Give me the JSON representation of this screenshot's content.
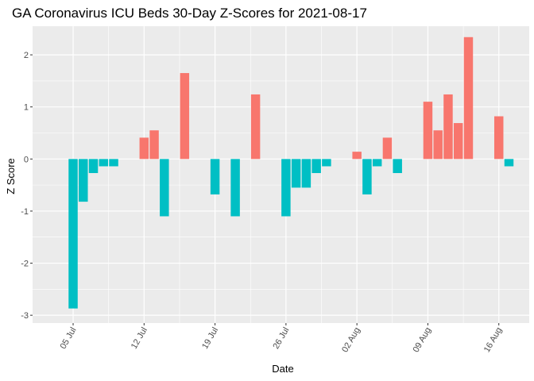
{
  "chart_data": {
    "type": "bar",
    "title": "GA Coronavirus ICU Beds 30-Day Z-Scores for 2021-08-17",
    "xlabel": "Date",
    "ylabel": "Z Score",
    "ylim": [
      -3.15,
      2.55
    ],
    "xlim": [
      "2021-07-01",
      "2021-08-19"
    ],
    "grid": true,
    "legend": "none",
    "colors": {
      "positive": "#F8766D",
      "negative": "#00BFC4",
      "panel": "#EBEBEB",
      "grid": "#FFFFFF"
    },
    "y_ticks": [
      -3,
      -2,
      -1,
      0,
      1,
      2
    ],
    "x_ticks": [
      {
        "date": "2021-07-05",
        "label": "05 Jul"
      },
      {
        "date": "2021-07-12",
        "label": "12 Jul"
      },
      {
        "date": "2021-07-19",
        "label": "19 Jul"
      },
      {
        "date": "2021-07-26",
        "label": "26 Jul"
      },
      {
        "date": "2021-08-02",
        "label": "02 Aug"
      },
      {
        "date": "2021-08-09",
        "label": "09 Aug"
      },
      {
        "date": "2021-08-16",
        "label": "16 Aug"
      }
    ],
    "points": [
      {
        "date": "2021-07-05",
        "value": -2.87
      },
      {
        "date": "2021-07-06",
        "value": -0.82
      },
      {
        "date": "2021-07-07",
        "value": -0.27
      },
      {
        "date": "2021-07-08",
        "value": -0.14
      },
      {
        "date": "2021-07-09",
        "value": -0.14
      },
      {
        "date": "2021-07-12",
        "value": 0.41
      },
      {
        "date": "2021-07-13",
        "value": 0.55
      },
      {
        "date": "2021-07-14",
        "value": -1.1
      },
      {
        "date": "2021-07-16",
        "value": 1.65
      },
      {
        "date": "2021-07-19",
        "value": -0.68
      },
      {
        "date": "2021-07-21",
        "value": -1.1
      },
      {
        "date": "2021-07-23",
        "value": 1.24
      },
      {
        "date": "2021-07-26",
        "value": -1.1
      },
      {
        "date": "2021-07-27",
        "value": -0.55
      },
      {
        "date": "2021-07-28",
        "value": -0.55
      },
      {
        "date": "2021-07-29",
        "value": -0.27
      },
      {
        "date": "2021-07-30",
        "value": -0.14
      },
      {
        "date": "2021-08-02",
        "value": 0.14
      },
      {
        "date": "2021-08-03",
        "value": -0.68
      },
      {
        "date": "2021-08-04",
        "value": -0.14
      },
      {
        "date": "2021-08-05",
        "value": 0.41
      },
      {
        "date": "2021-08-06",
        "value": -0.27
      },
      {
        "date": "2021-08-09",
        "value": 1.1
      },
      {
        "date": "2021-08-10",
        "value": 0.55
      },
      {
        "date": "2021-08-11",
        "value": 1.24
      },
      {
        "date": "2021-08-12",
        "value": 0.69
      },
      {
        "date": "2021-08-13",
        "value": 2.34
      },
      {
        "date": "2021-08-16",
        "value": 0.82
      },
      {
        "date": "2021-08-17",
        "value": -0.14
      }
    ]
  }
}
